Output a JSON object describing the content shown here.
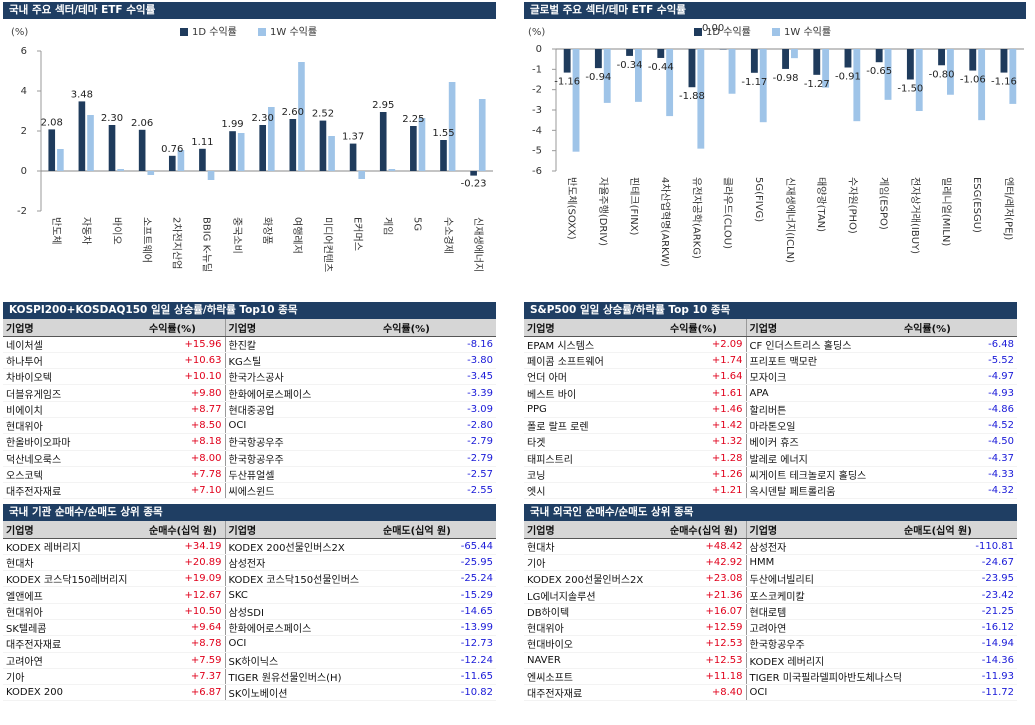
{
  "colors": {
    "header": "#1f3e63",
    "dark": "#1f3b5c",
    "light": "#9fc4e8",
    "up": "#e0001b",
    "down": "#1a1ad8"
  },
  "chart1": {
    "title": "국내 주요 섹터/테마 ETF 수익률",
    "unit": "(%)",
    "legend": [
      "1D 수익률",
      "1W 수익률"
    ],
    "chart_data": {
      "type": "bar",
      "categories": [
        "반도체",
        "자동차",
        "바이오",
        "소프트웨어",
        "2차전지산업",
        "BBIG K-뉴딜",
        "중국소비",
        "화장품",
        "여행레저",
        "미디어컨텐츠",
        "E커머스",
        "게임",
        "5G",
        "수소경제",
        "신재생에너지"
      ],
      "series": [
        {
          "name": "1D 수익률",
          "values": [
            2.08,
            3.48,
            2.3,
            2.06,
            0.76,
            1.11,
            1.99,
            2.3,
            2.6,
            2.52,
            1.37,
            2.95,
            2.25,
            1.55,
            -0.23
          ]
        },
        {
          "name": "1W 수익률",
          "values": [
            1.1,
            2.8,
            0.1,
            -0.2,
            1.05,
            -0.45,
            1.9,
            3.2,
            5.45,
            1.75,
            -0.4,
            0.1,
            2.65,
            4.45,
            3.6
          ]
        }
      ],
      "ylim": [
        -2,
        6
      ],
      "yticks": [
        -2,
        0,
        2,
        4,
        6
      ]
    }
  },
  "chart2": {
    "title": "글로벌 주요 섹터/테마 ETF 수익률",
    "unit": "(%)",
    "legend": [
      "1D 수익률",
      "1W 수익률"
    ],
    "legend_extra": "0.00",
    "chart_data": {
      "type": "bar",
      "categories": [
        "반도체(SOXX)",
        "자율주행(DRIV)",
        "핀테크(FINX)",
        "4차산업혁명(ARKW)",
        "유전자공학(ARKG)",
        "클라우드(CLOU)",
        "5G(FIVG)",
        "신재생에너지(ICLN)",
        "태양광(TAN)",
        "수자원(PHO)",
        "게임(ESPO)",
        "전자상거래(IBUY)",
        "밀레니얼(MILN)",
        "ESG(ESGU)",
        "엔터/레저(PEJ)"
      ],
      "series": [
        {
          "name": "1D 수익률",
          "values": [
            -1.16,
            -0.94,
            -0.34,
            -0.44,
            -1.88,
            0.0,
            -1.17,
            -0.98,
            -1.27,
            -0.91,
            -0.65,
            -1.5,
            -0.8,
            -1.06,
            -1.16
          ]
        },
        {
          "name": "1W 수익률",
          "values": [
            -5.05,
            -2.65,
            -2.6,
            -3.3,
            -4.9,
            -2.2,
            -3.6,
            -0.45,
            -1.9,
            -3.55,
            -2.5,
            -3.05,
            -2.25,
            -3.5,
            -2.7
          ]
        }
      ],
      "labels": [
        "-1.16",
        "-0.94",
        "-0.34",
        "-0.44",
        "-1.88",
        "",
        "-1.17",
        "-0.98",
        "-1.27",
        "-0.91",
        "-0.65",
        "-1.50",
        "-0.80",
        "-1.06",
        "-1.16"
      ],
      "ylim": [
        -6,
        0
      ],
      "yticks": [
        -6,
        -5,
        -4,
        -3,
        -2,
        -1,
        0
      ]
    }
  },
  "t1": {
    "title": "KOSPI200+KOSDAQ150 일일 상승률/하락률 Top10 종목",
    "headers": [
      "기업명",
      "수익률(%)",
      "기업명",
      "수익률(%)"
    ],
    "rows": [
      [
        "네이처셀",
        "+15.96",
        "한진칼",
        "-8.16"
      ],
      [
        "하나투어",
        "+10.63",
        "KG스틸",
        "-3.80"
      ],
      [
        "차바이오텍",
        "+10.10",
        "한국가스공사",
        "-3.45"
      ],
      [
        "더블유게임즈",
        "+9.80",
        "한화에어로스페이스",
        "-3.39"
      ],
      [
        "비에이치",
        "+8.77",
        "현대중공업",
        "-3.09"
      ],
      [
        "현대위아",
        "+8.50",
        "OCI",
        "-2.80"
      ],
      [
        "한올바이오파마",
        "+8.18",
        "한국항공우주",
        "-2.79"
      ],
      [
        "덕산네오룩스",
        "+8.00",
        "한국항공우주",
        "-2.79"
      ],
      [
        "오스코텍",
        "+7.78",
        "두산퓨얼셀",
        "-2.57"
      ],
      [
        "대주전자재료",
        "+7.10",
        "씨에스윈드",
        "-2.55"
      ]
    ]
  },
  "t2": {
    "title": "S&P500 일일 상승률/하락률 Top 10 종목",
    "headers": [
      "기업명",
      "수익률(%)",
      "기업명",
      "수익률(%)"
    ],
    "rows": [
      [
        "EPAM 시스템스",
        "+2.09",
        "CF 인더스트리스 홀딩스",
        "-6.48"
      ],
      [
        "페이콤 소프트웨어",
        "+1.74",
        "프리포트 맥모란",
        "-5.52"
      ],
      [
        "언더 아머",
        "+1.64",
        "모자이크",
        "-4.97"
      ],
      [
        "베스트 바이",
        "+1.61",
        "APA",
        "-4.93"
      ],
      [
        "PPG",
        "+1.46",
        "할리버튼",
        "-4.86"
      ],
      [
        "폴로 랄프 로렌",
        "+1.42",
        "마라톤오일",
        "-4.52"
      ],
      [
        "타겟",
        "+1.32",
        "베이커 휴즈",
        "-4.50"
      ],
      [
        "태피스트리",
        "+1.28",
        "발레로 에너지",
        "-4.37"
      ],
      [
        "코닝",
        "+1.26",
        "씨게이트 테크놀로지 홀딩스",
        "-4.33"
      ],
      [
        "엣시",
        "+1.21",
        "옥시덴탈 페트롤리움",
        "-4.32"
      ]
    ]
  },
  "t3": {
    "title": "국내 기관 순매수/순매도 상위 종목",
    "headers": [
      "기업명",
      "순매수(십억 원)",
      "기업명",
      "순매도(십억 원)"
    ],
    "rows": [
      [
        "KODEX 레버리지",
        "+34.19",
        "KODEX 200선물인버스2X",
        "-65.44"
      ],
      [
        "현대차",
        "+20.89",
        "삼성전자",
        "-25.95"
      ],
      [
        "KODEX 코스닥150레버리지",
        "+19.09",
        "KODEX 코스닥150선물인버스",
        "-25.24"
      ],
      [
        "엘앤에프",
        "+12.67",
        "SKC",
        "-15.29"
      ],
      [
        "현대위아",
        "+10.50",
        "삼성SDI",
        "-14.65"
      ],
      [
        "SK텔레콤",
        "+9.64",
        "한화에어로스페이스",
        "-13.99"
      ],
      [
        "대주전자재료",
        "+8.78",
        "OCI",
        "-12.73"
      ],
      [
        "고려아연",
        "+7.59",
        "SK하이닉스",
        "-12.24"
      ],
      [
        "기아",
        "+7.37",
        "TIGER 원유선물인버스(H)",
        "-11.65"
      ],
      [
        "KODEX 200",
        "+6.87",
        "SK이노베이션",
        "-10.82"
      ]
    ]
  },
  "t4": {
    "title": "국내 외국인 순매수/순매도 상위 종목",
    "headers": [
      "기업명",
      "순매수(십억 원)",
      "기업명",
      "순매도(십억 원)"
    ],
    "rows": [
      [
        "현대차",
        "+48.42",
        "삼성전자",
        "-110.81"
      ],
      [
        "기아",
        "+42.92",
        "HMM",
        "-24.67"
      ],
      [
        "KODEX 200선물인버스2X",
        "+23.08",
        "두산에너빌리티",
        "-23.95"
      ],
      [
        "LG에너지솔루션",
        "+21.36",
        "포스코케미칼",
        "-23.42"
      ],
      [
        "DB하이텍",
        "+16.07",
        "현대로템",
        "-21.25"
      ],
      [
        "현대위아",
        "+12.59",
        "고려아연",
        "-16.12"
      ],
      [
        "현대바이오",
        "+12.53",
        "한국항공우주",
        "-14.94"
      ],
      [
        "NAVER",
        "+12.53",
        "KODEX 레버리지",
        "-14.36"
      ],
      [
        "엔씨소프트",
        "+11.18",
        "TIGER 미국필라델피아반도체나스닥",
        "-11.93"
      ],
      [
        "대주전자재료",
        "+8.40",
        "OCI",
        "-11.72"
      ]
    ]
  }
}
